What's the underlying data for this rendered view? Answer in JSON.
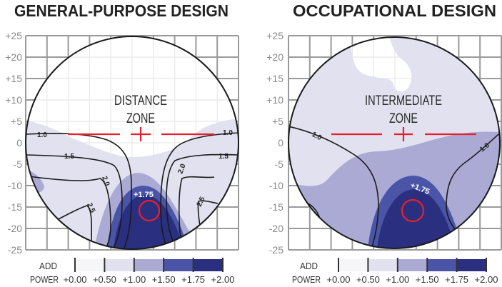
{
  "colors": {
    "band_0_00_0_50": "#f6f6f8",
    "band_0_50_1_00": "#e1e1f0",
    "band_1_00_1_50": "#aaaad5",
    "band_1_50_1_75": "#4a55a8",
    "band_1_75_2_00": "#2b2f80",
    "reference_marks": "#e8202a"
  },
  "y_ticks": [
    "+25",
    "+20",
    "+15",
    "+10",
    "+5",
    "0",
    "-5",
    "-10",
    "-15",
    "-20",
    "-25"
  ],
  "panels": [
    {
      "title": "GENERAL-PURPOSE DESIGN",
      "zone_line1": "DISTANCE",
      "zone_line2": "ZONE",
      "near_label": "+1.75",
      "contour_labels": [
        "1.0",
        "1.0",
        "1.5",
        "1.5",
        "2.0",
        "2.0",
        "2.5",
        "2.5"
      ]
    },
    {
      "title": "OCCUPATIONAL DESIGN",
      "zone_line1": "INTERMEDIATE",
      "zone_line2": "ZONE",
      "near_label": "+1.75",
      "contour_labels": [
        "1.0",
        "1.0"
      ]
    }
  ],
  "legend": {
    "label_line1": "ADD",
    "label_line2": "POWER",
    "ticks": [
      "+0.00",
      "+0.50",
      "+1.00",
      "+1.50",
      "+1.75",
      "+2.00"
    ]
  }
}
